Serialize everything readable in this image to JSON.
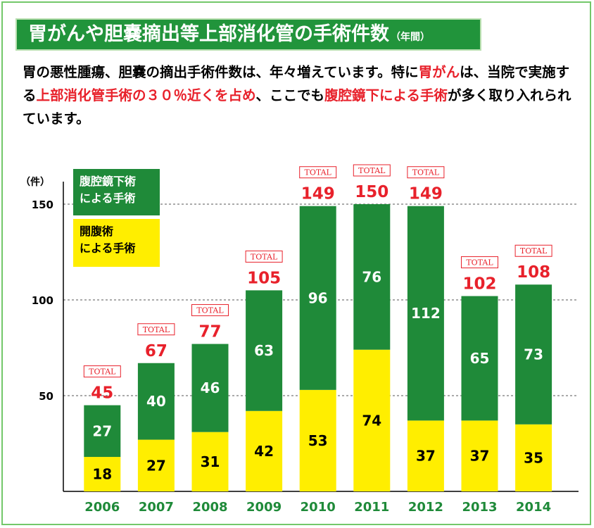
{
  "header": {
    "title": "胃がんや胆嚢摘出等上部消化管の手術件数",
    "title_sub": "（年間）"
  },
  "description": {
    "s1": "胃の悪性腫瘍、胆嚢の摘出手術件数は、年々増えています。特に",
    "h1": "胃がん",
    "s2": "は、当院で実施する",
    "h2": "上部消化管手術の３０％近くを占め",
    "s3": "、ここでも",
    "h3": "腹腔鏡下による手術",
    "s4": "が多く取り入れられています。"
  },
  "legend": {
    "laparoscopic_line1": "腹腔鏡下術",
    "laparoscopic_line2": "による手術",
    "open_line1": "開腹術",
    "open_line2": "による手術"
  },
  "colors": {
    "laparoscopic": "#1f8a39",
    "open": "#ffee00",
    "total_red": "#e8212b",
    "year_green": "#1f8a39",
    "title_bg": "#21943b"
  },
  "chart_data": {
    "type": "bar",
    "stacked": true,
    "ylabel": "（件）",
    "ylim": [
      0,
      150
    ],
    "yticks": [
      50,
      100,
      150
    ],
    "grid": true,
    "categories": [
      "2006",
      "2007",
      "2008",
      "2009",
      "2010",
      "2011",
      "2012",
      "2013",
      "2014"
    ],
    "series": [
      {
        "name": "開腹術による手術",
        "values": [
          18,
          27,
          31,
          42,
          53,
          74,
          37,
          37,
          35
        ]
      },
      {
        "name": "腹腔鏡下術による手術",
        "values": [
          27,
          40,
          46,
          63,
          96,
          76,
          112,
          65,
          73
        ]
      }
    ],
    "totals": [
      45,
      67,
      77,
      105,
      149,
      150,
      149,
      102,
      108
    ],
    "total_badge": "TOTAL",
    "legend_position": "top-left"
  }
}
